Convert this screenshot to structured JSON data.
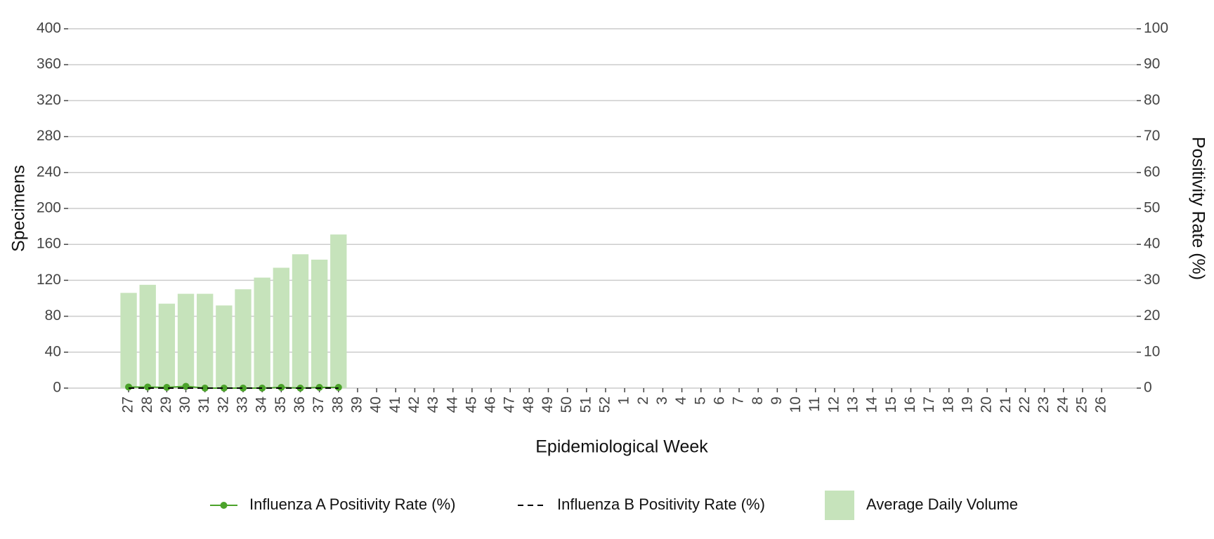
{
  "chart_data": {
    "type": "bar",
    "x_label": "Epidemiological Week",
    "y_label": "Specimens",
    "y2_label": "Positivity Rate (%)",
    "categories": [
      "27",
      "28",
      "29",
      "30",
      "31",
      "32",
      "33",
      "34",
      "35",
      "36",
      "37",
      "38",
      "39",
      "40",
      "41",
      "42",
      "43",
      "44",
      "45",
      "46",
      "47",
      "48",
      "49",
      "50",
      "51",
      "52",
      "1",
      "2",
      "3",
      "4",
      "5",
      "6",
      "7",
      "8",
      "9",
      "10",
      "11",
      "12",
      "13",
      "14",
      "15",
      "16",
      "17",
      "18",
      "19",
      "20",
      "21",
      "22",
      "23",
      "24",
      "25",
      "26"
    ],
    "series": [
      {
        "name": "Influenza A Positivity Rate (%)",
        "type": "line",
        "axis": "y2",
        "color": "#4ba32a",
        "markers": true,
        "dash": false,
        "values": [
          0.3,
          0.3,
          0.2,
          0.5,
          0,
          0,
          0,
          0,
          0.2,
          0,
          0.2,
          0.2,
          null,
          null,
          null,
          null,
          null,
          null,
          null,
          null,
          null,
          null,
          null,
          null,
          null,
          null,
          null,
          null,
          null,
          null,
          null,
          null,
          null,
          null,
          null,
          null,
          null,
          null,
          null,
          null,
          null,
          null,
          null,
          null,
          null,
          null,
          null,
          null,
          null,
          null,
          null,
          null
        ]
      },
      {
        "name": "Influenza B Positivity Rate (%)",
        "type": "line",
        "axis": "y2",
        "color": "#000000",
        "markers": false,
        "dash": true,
        "values": [
          0,
          0,
          0,
          0,
          0,
          0,
          0,
          0,
          0,
          0,
          0,
          0,
          null,
          null,
          null,
          null,
          null,
          null,
          null,
          null,
          null,
          null,
          null,
          null,
          null,
          null,
          null,
          null,
          null,
          null,
          null,
          null,
          null,
          null,
          null,
          null,
          null,
          null,
          null,
          null,
          null,
          null,
          null,
          null,
          null,
          null,
          null,
          null,
          null,
          null,
          null,
          null
        ]
      },
      {
        "name": "Average Daily Volume",
        "type": "bar",
        "color": "#c6e3bb",
        "values": [
          106,
          115,
          94,
          105,
          105,
          92,
          110,
          123,
          134,
          149,
          143,
          171,
          null,
          null,
          null,
          null,
          null,
          null,
          null,
          null,
          null,
          null,
          null,
          null,
          null,
          null,
          null,
          null,
          null,
          null,
          null,
          null,
          null,
          null,
          null,
          null,
          null,
          null,
          null,
          null,
          null,
          null,
          null,
          null,
          null,
          null,
          null,
          null,
          null,
          null,
          null,
          null
        ]
      }
    ],
    "ylim": [
      0,
      400
    ],
    "yticks": [
      0,
      40,
      80,
      120,
      160,
      200,
      240,
      280,
      320,
      360,
      400
    ],
    "y2lim": [
      0,
      100
    ],
    "y2ticks": [
      0,
      10,
      20,
      30,
      40,
      50,
      60,
      70,
      80,
      90,
      100
    ],
    "grid": true,
    "legend": "bottom"
  }
}
